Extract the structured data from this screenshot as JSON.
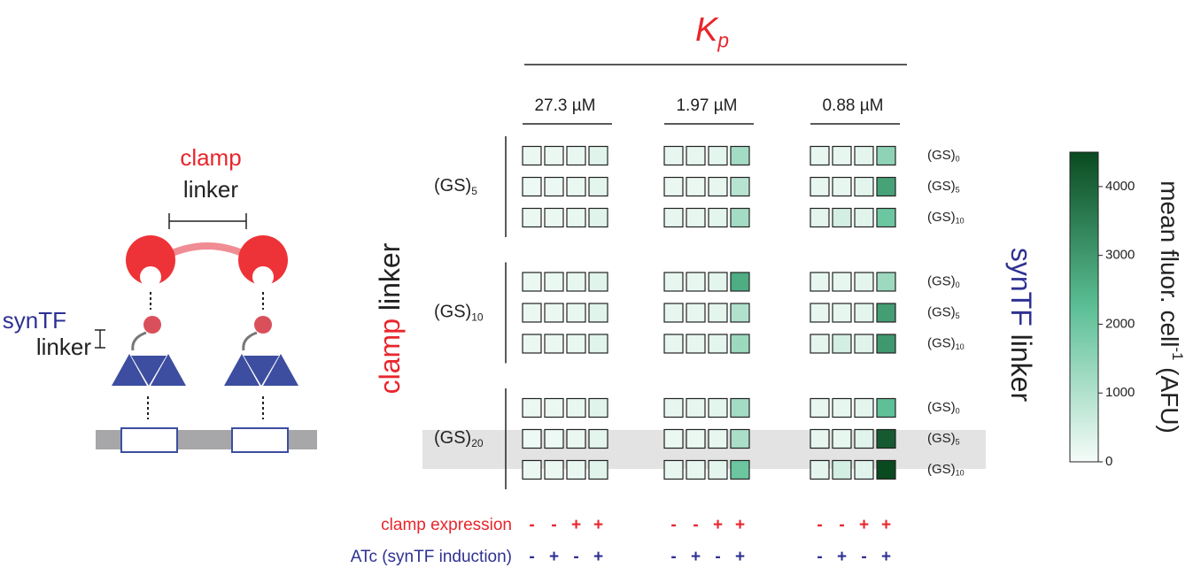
{
  "chart_data": {
    "type": "heatmap",
    "title": {
      "text": "K",
      "sub": "p"
    },
    "title_color": "#e8262c",
    "clamp_axis_label": [
      "clamp",
      " linker"
    ],
    "syntf_axis_label": [
      "synTF",
      " linker"
    ],
    "groups": [
      {
        "label": "27.3 µM",
        "values": [
          [
            150,
            150,
            180,
            300
          ],
          [
            120,
            130,
            160,
            250
          ],
          [
            150,
            150,
            180,
            300
          ],
          [
            150,
            160,
            200,
            300
          ],
          [
            150,
            150,
            180,
            300
          ],
          [
            150,
            150,
            180,
            300
          ],
          [
            150,
            150,
            180,
            300
          ],
          [
            120,
            120,
            150,
            250
          ],
          [
            150,
            150,
            180,
            300
          ]
        ]
      },
      {
        "label": "1.97 µM",
        "values": [
          [
            200,
            200,
            250,
            1200
          ],
          [
            150,
            150,
            200,
            900
          ],
          [
            200,
            200,
            250,
            1200
          ],
          [
            200,
            200,
            250,
            2600
          ],
          [
            200,
            200,
            250,
            1000
          ],
          [
            200,
            200,
            250,
            1300
          ],
          [
            200,
            200,
            250,
            1200
          ],
          [
            150,
            150,
            200,
            1100
          ],
          [
            200,
            200,
            250,
            2000
          ]
        ]
      },
      {
        "label": "0.88 µM",
        "values": [
          [
            200,
            200,
            250,
            1500
          ],
          [
            200,
            200,
            250,
            2800
          ],
          [
            250,
            500,
            300,
            2000
          ],
          [
            200,
            200,
            250,
            1300
          ],
          [
            200,
            200,
            250,
            2900
          ],
          [
            250,
            500,
            300,
            3000
          ],
          [
            200,
            200,
            250,
            2200
          ],
          [
            200,
            200,
            300,
            4200
          ],
          [
            250,
            500,
            300,
            4500
          ]
        ]
      }
    ],
    "row_groups": [
      {
        "text": "(GS)",
        "sub": "5"
      },
      {
        "text": "(GS)",
        "sub": "10"
      },
      {
        "text": "(GS)",
        "sub": "20"
      }
    ],
    "row_labels": [
      {
        "text": "(GS)",
        "sub": "0"
      },
      {
        "text": "(GS)",
        "sub": "5"
      },
      {
        "text": "(GS)",
        "sub": "10"
      },
      {
        "text": "(GS)",
        "sub": "0"
      },
      {
        "text": "(GS)",
        "sub": "5"
      },
      {
        "text": "(GS)",
        "sub": "10"
      },
      {
        "text": "(GS)",
        "sub": "0"
      },
      {
        "text": "(GS)",
        "sub": "5"
      },
      {
        "text": "(GS)",
        "sub": "10"
      }
    ],
    "conditions": [
      {
        "label": "clamp expression",
        "color": "#e8262c",
        "signs": [
          "-",
          "-",
          "+",
          "+"
        ]
      },
      {
        "label": "ATc (synTF induction)",
        "color": "#2e3192",
        "signs": [
          "-",
          "+",
          "-",
          "+"
        ]
      }
    ],
    "colorbar": {
      "label": {
        "text": "mean fluor. cell",
        "sup": "-1",
        "rest": " (AFU)"
      },
      "colors": [
        "#f5fcf9",
        "#5bbf95",
        "#0a4a20"
      ],
      "ylim": [
        0,
        4500
      ],
      "yticks": [
        0,
        1000,
        2000,
        3000,
        4000
      ]
    },
    "diagram": {
      "clamp_label": [
        "clamp",
        "linker"
      ],
      "syntf_label": [
        "synTF",
        "linker"
      ]
    }
  }
}
